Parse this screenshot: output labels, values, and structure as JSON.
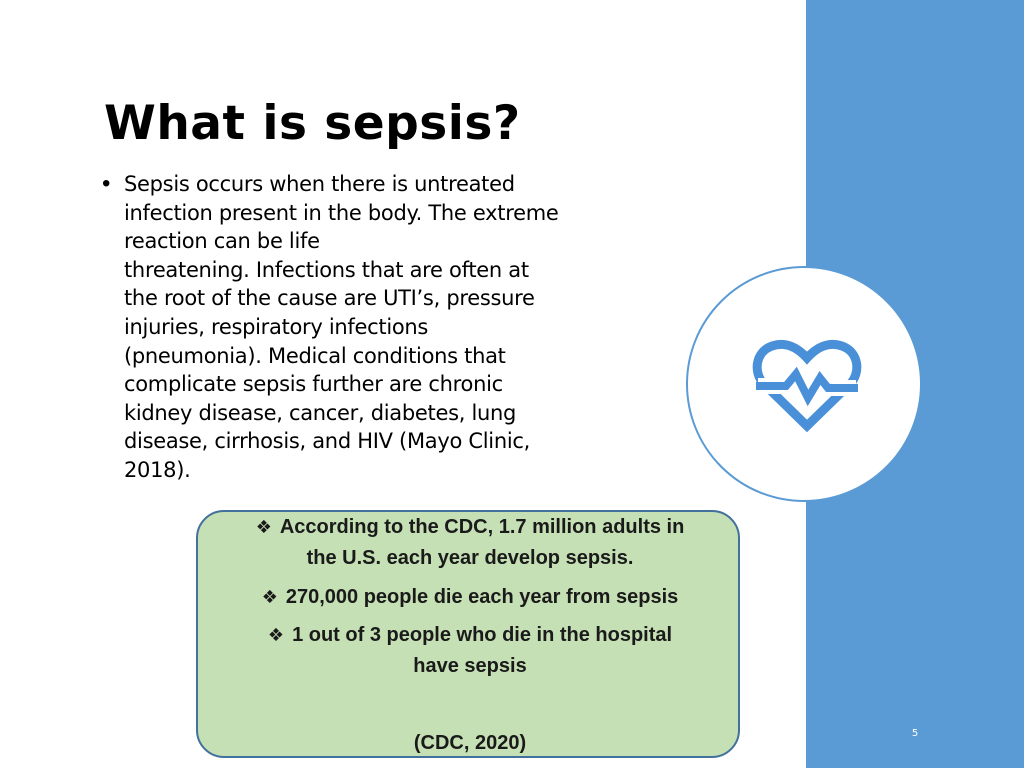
{
  "slide": {
    "title": "What is sepsis?",
    "slide_number": "5"
  },
  "body": {
    "bullet_symbol": "•",
    "paragraph": "Sepsis occurs when there is untreated\ninfection present in the body.  The extreme\nreaction can  be life\nthreatening.  Infections that are often at\nthe root of the cause are UTI’s, pressure\ninjuries, respiratory infections\n(pneumonia).  Medical conditions that\ncomplicate sepsis further are chronic\nkidney disease, cancer, diabetes, lung\ndisease, cirrhosis, and HIV (Mayo Clinic,\n2018)."
  },
  "icon": {
    "name": "heart-pulse-icon",
    "color": "#4a90d9"
  },
  "stats_box": {
    "bullet_symbol": "❖",
    "items": [
      {
        "line1": "According to the CDC, 1.7 million adults in",
        "line2": "the U.S. each year develop sepsis."
      },
      {
        "line1": "270,000 people die each year from sepsis",
        "line2": ""
      },
      {
        "line1": "1 out of 3 people who die in the hospital",
        "line2": "have sepsis"
      }
    ],
    "citation": "(CDC, 2020)"
  },
  "colors": {
    "side_panel": "#5b9bd5",
    "box_fill": "#c5e0b4",
    "box_border": "#41719c"
  }
}
